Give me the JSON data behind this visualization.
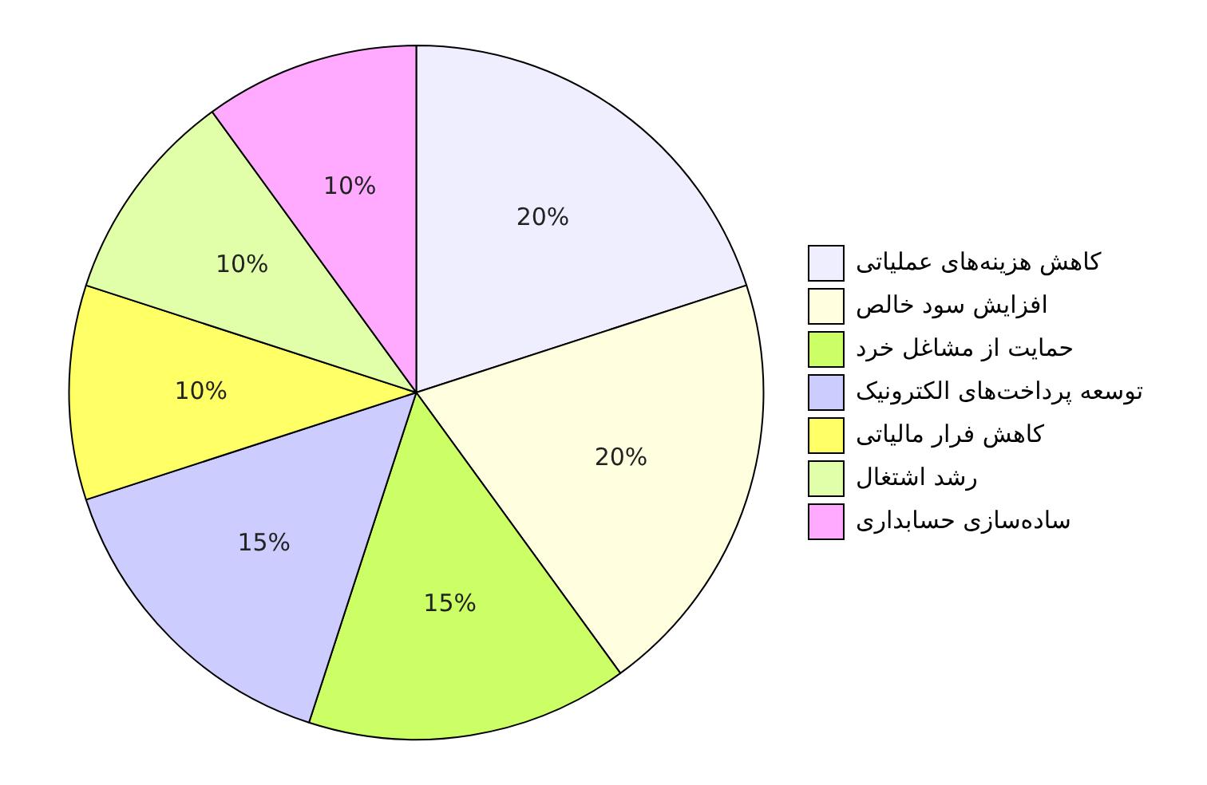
{
  "chart_data": {
    "type": "pie",
    "categories": [
      "کاهش هزینه‌های عملیاتی",
      "افزایش سود خالص",
      "حمایت از مشاغل خرد",
      "توسعه پرداخت‌های الکترونیک",
      "کاهش فرار مالیاتی",
      "رشد اشتغال",
      "ساده‌سازی حسابداری"
    ],
    "values": [
      20,
      20,
      15,
      15,
      10,
      10,
      10
    ],
    "value_labels": [
      "20%",
      "20%",
      "15%",
      "15%",
      "10%",
      "10%",
      "10%"
    ],
    "colors": [
      "#eeeeff",
      "#ffffe0",
      "#ccff66",
      "#ccccff",
      "#ffff66",
      "#e0ffa8",
      "#ffaaff"
    ],
    "legend": "right"
  }
}
